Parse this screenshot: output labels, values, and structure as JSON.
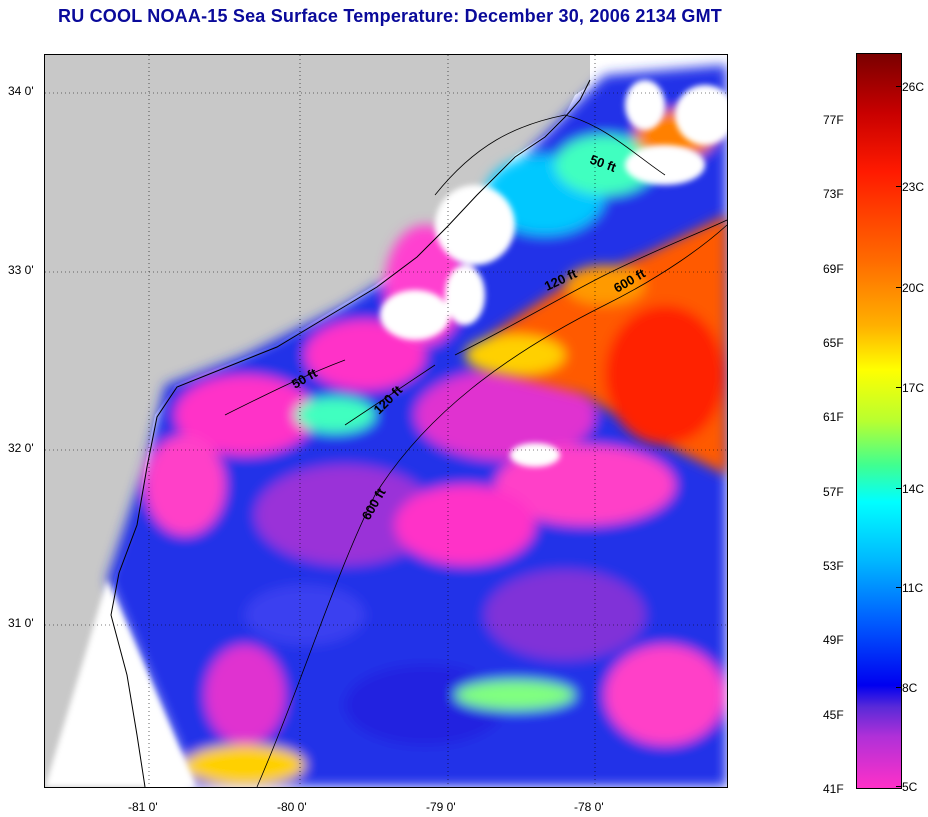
{
  "title": "RU COOL  NOAA-15  Sea Surface Temperature:  December 30, 2006 2134 GMT",
  "latitude_labels": [
    "34 0'",
    "33 0'",
    "32 0'",
    "31 0'"
  ],
  "longitude_labels": [
    "-81 0'",
    "-80 0'",
    "-79 0'",
    "-78 0'"
  ],
  "isobath_labels": [
    "50 ft",
    "120 ft",
    "600 ft",
    "50 ft",
    "120 ft",
    "600 ft"
  ],
  "colorbar": {
    "fahrenheit_labels": [
      "77F",
      "73F",
      "69F",
      "65F",
      "61F",
      "57F",
      "53F",
      "49F",
      "45F",
      "41F"
    ],
    "celsius_labels": [
      "26C",
      "23C",
      "20C",
      "17C",
      "14C",
      "11C",
      "8C",
      "5C"
    ]
  },
  "colors": {
    "land": "#c8c8c8",
    "title": "#0a0a9a",
    "cloud": "#ffffff"
  }
}
